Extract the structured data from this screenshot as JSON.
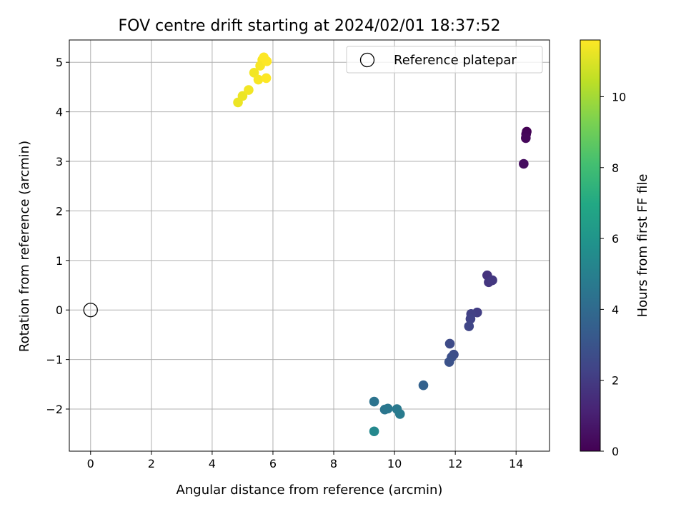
{
  "chart_data": {
    "type": "scatter",
    "title": "FOV centre drift starting at 2024/02/01 18:37:52",
    "xlabel": "Angular distance from reference (arcmin)",
    "ylabel": "Rotation from reference (arcmin)",
    "xlim": [
      -0.7,
      15.1
    ],
    "ylim": [
      -2.85,
      5.45
    ],
    "xticks": [
      0,
      2,
      4,
      6,
      8,
      10,
      12,
      14
    ],
    "yticks": [
      -2,
      -1,
      0,
      1,
      2,
      3,
      4,
      5
    ],
    "grid": true,
    "legend": {
      "placement": "top-right",
      "entries": [
        "Reference platepar"
      ]
    },
    "reference_point": {
      "x": 0,
      "y": 0,
      "label": "Reference platepar"
    },
    "colorbar": {
      "label": "Hours from first FF file",
      "colormap": "viridis",
      "range": [
        0,
        11.6
      ],
      "ticks": [
        0,
        2,
        4,
        6,
        8,
        10
      ]
    },
    "points": [
      {
        "x": 14.35,
        "y": 3.6,
        "h": 0.0
      },
      {
        "x": 14.33,
        "y": 3.55,
        "h": 0.1
      },
      {
        "x": 14.32,
        "y": 3.47,
        "h": 0.2
      },
      {
        "x": 14.25,
        "y": 2.95,
        "h": 0.4
      },
      {
        "x": 13.05,
        "y": 0.7,
        "h": 1.7
      },
      {
        "x": 13.1,
        "y": 0.56,
        "h": 1.8
      },
      {
        "x": 13.22,
        "y": 0.6,
        "h": 1.9
      },
      {
        "x": 12.72,
        "y": -0.05,
        "h": 2.1
      },
      {
        "x": 12.52,
        "y": -0.08,
        "h": 2.2
      },
      {
        "x": 12.5,
        "y": -0.18,
        "h": 2.3
      },
      {
        "x": 12.45,
        "y": -0.33,
        "h": 2.4
      },
      {
        "x": 11.82,
        "y": -0.68,
        "h": 2.6
      },
      {
        "x": 11.95,
        "y": -0.9,
        "h": 2.7
      },
      {
        "x": 11.88,
        "y": -0.95,
        "h": 2.8
      },
      {
        "x": 11.8,
        "y": -1.05,
        "h": 2.9
      },
      {
        "x": 10.95,
        "y": -1.52,
        "h": 3.6
      },
      {
        "x": 9.33,
        "y": -1.85,
        "h": 4.4
      },
      {
        "x": 9.68,
        "y": -2.01,
        "h": 4.5
      },
      {
        "x": 9.78,
        "y": -1.99,
        "h": 4.6
      },
      {
        "x": 10.08,
        "y": -2.0,
        "h": 4.7
      },
      {
        "x": 10.18,
        "y": -2.1,
        "h": 4.8
      },
      {
        "x": 9.33,
        "y": -2.45,
        "h": 5.4
      },
      {
        "x": 4.85,
        "y": 4.19,
        "h": 11.3
      },
      {
        "x": 5.0,
        "y": 4.32,
        "h": 11.3
      },
      {
        "x": 5.2,
        "y": 4.44,
        "h": 11.4
      },
      {
        "x": 5.38,
        "y": 4.79,
        "h": 11.4
      },
      {
        "x": 5.52,
        "y": 4.65,
        "h": 11.5
      },
      {
        "x": 5.58,
        "y": 4.93,
        "h": 11.5
      },
      {
        "x": 5.65,
        "y": 5.05,
        "h": 11.5
      },
      {
        "x": 5.7,
        "y": 5.1,
        "h": 11.6
      },
      {
        "x": 5.8,
        "y": 5.02,
        "h": 11.6
      },
      {
        "x": 5.78,
        "y": 4.68,
        "h": 11.6
      }
    ]
  }
}
